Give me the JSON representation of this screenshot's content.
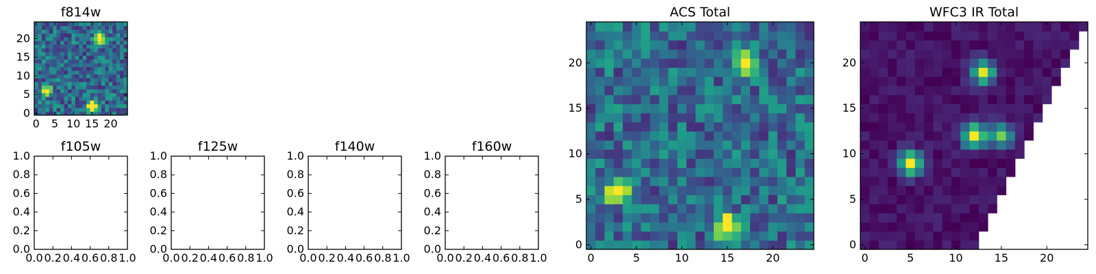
{
  "colormap": "viridis",
  "chart_data": [
    {
      "type": "heatmap",
      "title": "f814w",
      "x_ticks": [
        "0",
        "5",
        "10",
        "15",
        "20"
      ],
      "y_ticks": [
        "0",
        "5",
        "10",
        "15",
        "20"
      ],
      "xlim": [
        -0.5,
        24.5
      ],
      "ylim": [
        -0.5,
        24.5
      ],
      "grid_size": [
        25,
        25
      ],
      "bright_sources": [
        {
          "x": 3,
          "y": 6,
          "level": 1.0
        },
        {
          "x": 15,
          "y": 2,
          "level": 1.0
        },
        {
          "x": 17,
          "y": 20,
          "level": 1.0
        }
      ],
      "background_level": 0.35
    },
    {
      "type": "empty",
      "title": "f105w",
      "x_ticks": [
        "0.0",
        "0.2",
        "0.4",
        "0.6",
        "0.8",
        "1.0"
      ],
      "y_ticks": [
        "0.0",
        "0.2",
        "0.4",
        "0.6",
        "0.8",
        "1.0"
      ],
      "xlim": [
        0,
        1
      ],
      "ylim": [
        0,
        1
      ]
    },
    {
      "type": "empty",
      "title": "f125w",
      "x_ticks": [
        "0.0",
        "0.2",
        "0.4",
        "0.6",
        "0.8",
        "1.0"
      ],
      "y_ticks": [
        "0.0",
        "0.2",
        "0.4",
        "0.6",
        "0.8",
        "1.0"
      ],
      "xlim": [
        0,
        1
      ],
      "ylim": [
        0,
        1
      ]
    },
    {
      "type": "empty",
      "title": "f140w",
      "x_ticks": [
        "0.0",
        "0.2",
        "0.4",
        "0.6",
        "0.8",
        "1.0"
      ],
      "y_ticks": [
        "0.0",
        "0.2",
        "0.4",
        "0.6",
        "0.8",
        "1.0"
      ],
      "xlim": [
        0,
        1
      ],
      "ylim": [
        0,
        1
      ]
    },
    {
      "type": "empty",
      "title": "f160w",
      "x_ticks": [
        "0.0",
        "0.2",
        "0.4",
        "0.6",
        "0.8",
        "1.0"
      ],
      "y_ticks": [
        "0.0",
        "0.2",
        "0.4",
        "0.6",
        "0.8",
        "1.0"
      ],
      "xlim": [
        0,
        1
      ],
      "ylim": [
        0,
        1
      ]
    },
    {
      "type": "heatmap",
      "title": "ACS Total",
      "x_ticks": [
        "0",
        "5",
        "10",
        "15",
        "20"
      ],
      "y_ticks": [
        "0",
        "5",
        "10",
        "15",
        "20"
      ],
      "xlim": [
        -0.5,
        24.5
      ],
      "ylim": [
        -0.5,
        24.5
      ],
      "grid_size": [
        25,
        25
      ],
      "bright_sources": [
        {
          "x": 3,
          "y": 6,
          "level": 1.0
        },
        {
          "x": 15,
          "y": 2,
          "level": 1.0
        },
        {
          "x": 17,
          "y": 20,
          "level": 1.0
        }
      ],
      "background_level": 0.35
    },
    {
      "type": "heatmap",
      "title": "WFC3 IR Total",
      "x_ticks": [
        "0",
        "5",
        "10",
        "15",
        "20"
      ],
      "y_ticks": [
        "0",
        "5",
        "10",
        "15",
        "20"
      ],
      "xlim": [
        -0.5,
        24.5
      ],
      "ylim": [
        -0.5,
        24.5
      ],
      "grid_size": [
        25,
        25
      ],
      "bright_sources": [
        {
          "x": 5,
          "y": 9,
          "level": 1.0
        },
        {
          "x": 12,
          "y": 12,
          "level": 1.0
        },
        {
          "x": 13,
          "y": 19,
          "level": 0.9
        },
        {
          "x": 15,
          "y": 12,
          "level": 0.75
        }
      ],
      "background_level": 0.05,
      "masked_region": "upper-right triangle (blank where x > 12 + y/2)"
    }
  ]
}
